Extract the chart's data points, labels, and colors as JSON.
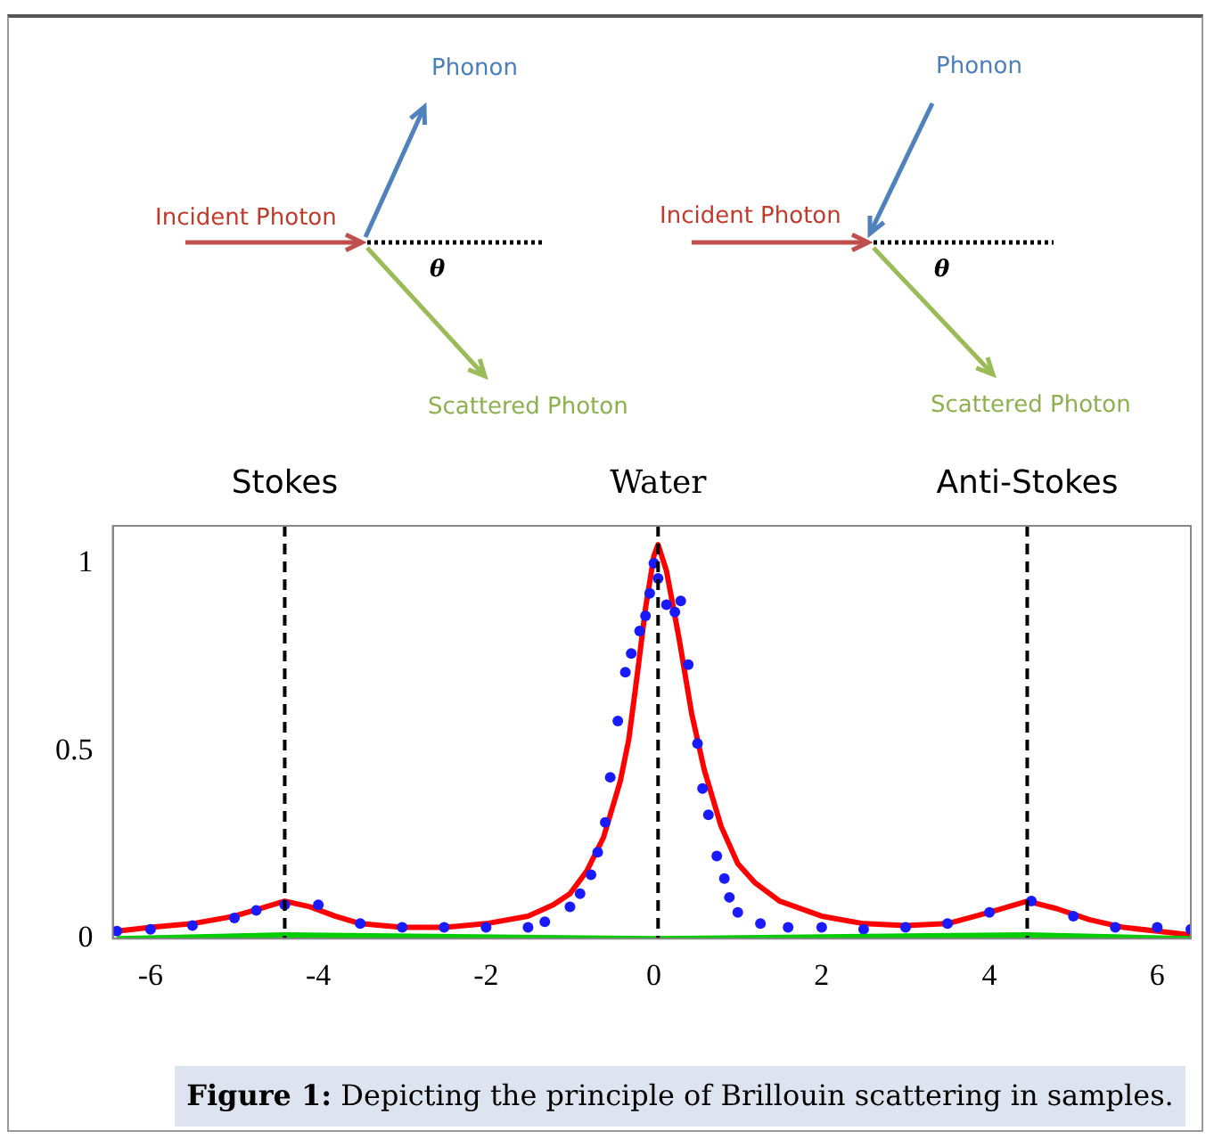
{
  "chart_data": {
    "type": "line",
    "annotations": [
      "Incident Photon",
      "Phonon",
      "Scattered Photon",
      "θ",
      "Incident Photon",
      "Phonon",
      "Scattered Photon",
      "θ",
      "Figure 1: Depicting the principle of Brillouin scattering in samples."
    ],
    "xlim": [
      -6.45,
      6.4
    ],
    "ylim": [
      0,
      1.1
    ],
    "xticks": [
      -6,
      -4,
      -2,
      0,
      2,
      4,
      6
    ],
    "yticks": [
      0,
      0.5,
      1
    ],
    "grid": false,
    "legend": false,
    "ref_lines": [
      {
        "axis": "x",
        "value": -4.4,
        "label": "Stokes",
        "color": "#000000",
        "line_style": "dashed"
      },
      {
        "axis": "x",
        "value": 0.05,
        "label": "Water",
        "color": "#000000",
        "line_style": "dashed"
      },
      {
        "axis": "x",
        "value": 4.45,
        "label": "Anti-Stokes",
        "color": "#000000",
        "line_style": "dashed"
      }
    ],
    "series": [
      {
        "type": "line",
        "color": "#00cc00",
        "x": [
          -6.4,
          -4.4,
          0,
          4.45,
          6.4
        ],
        "values": [
          0,
          0.01,
          0,
          0.01,
          0
        ]
      },
      {
        "type": "scatter",
        "color": "#1a1aff",
        "marker": "circle",
        "x": [
          -6.4,
          -6,
          -5.5,
          -5,
          -4.74,
          -4.4,
          -4,
          -3.5,
          -3,
          -2.5,
          -2,
          -1.5,
          -1.3,
          -1,
          -0.88,
          -0.75,
          -0.67,
          -0.58,
          -0.52,
          -0.43,
          -0.34,
          -0.27,
          -0.17,
          -0.1,
          -0.05,
          0,
          0.05,
          0.15,
          0.25,
          0.32,
          0.41,
          0.52,
          0.58,
          0.65,
          0.75,
          0.84,
          0.9,
          1,
          1.27,
          1.6,
          2,
          2.5,
          3,
          3.5,
          4,
          4.5,
          5,
          5.5,
          6,
          6.4
        ],
        "values": [
          0.02,
          0.025,
          0.035,
          0.055,
          0.075,
          0.09,
          0.09,
          0.04,
          0.03,
          0.03,
          0.03,
          0.03,
          0.045,
          0.085,
          0.12,
          0.17,
          0.23,
          0.31,
          0.43,
          0.58,
          0.71,
          0.76,
          0.82,
          0.86,
          0.92,
          1,
          0.96,
          0.89,
          0.87,
          0.9,
          0.73,
          0.52,
          0.4,
          0.33,
          0.22,
          0.16,
          0.11,
          0.07,
          0.04,
          0.03,
          0.03,
          0.025,
          0.03,
          0.04,
          0.07,
          0.1,
          0.06,
          0.03,
          0.03,
          0.025
        ]
      },
      {
        "type": "line",
        "color": "#ff0000",
        "x": [
          -6.4,
          -6,
          -5.5,
          -5,
          -4.7,
          -4.4,
          -4.1,
          -3.8,
          -3.5,
          -3,
          -2.5,
          -2,
          -1.5,
          -1.2,
          -1,
          -0.8,
          -0.6,
          -0.4,
          -0.3,
          -0.2,
          -0.1,
          0,
          0.05,
          0.15,
          0.3,
          0.45,
          0.6,
          0.8,
          1,
          1.2,
          1.5,
          2,
          2.5,
          3,
          3.5,
          4,
          4.45,
          4.8,
          5.2,
          5.6,
          6,
          6.4
        ],
        "values": [
          0.02,
          0.03,
          0.04,
          0.06,
          0.08,
          0.1,
          0.085,
          0.06,
          0.04,
          0.03,
          0.03,
          0.04,
          0.06,
          0.09,
          0.12,
          0.18,
          0.27,
          0.42,
          0.53,
          0.7,
          0.88,
          1.02,
          1.05,
          0.98,
          0.8,
          0.6,
          0.45,
          0.3,
          0.2,
          0.15,
          0.1,
          0.06,
          0.04,
          0.035,
          0.04,
          0.07,
          0.1,
          0.08,
          0.05,
          0.03,
          0.02,
          0.01
        ]
      }
    ]
  }
}
